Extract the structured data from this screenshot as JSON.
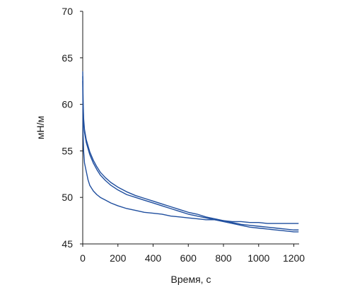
{
  "chart_data": {
    "type": "line",
    "title": "",
    "xlabel": "Время, с",
    "ylabel": "мН/м",
    "xlim": [
      0,
      1230
    ],
    "ylim": [
      45,
      70
    ],
    "xticks": [
      0,
      200,
      400,
      600,
      800,
      1000,
      1200
    ],
    "yticks": [
      45,
      50,
      55,
      60,
      65,
      70
    ],
    "grid": false,
    "legend": "none",
    "line_color": "#1f4e9e",
    "series": [
      {
        "x": [
          0,
          2,
          5,
          10,
          20,
          40,
          60,
          80,
          100,
          130,
          160,
          200,
          250,
          300,
          350,
          400,
          450,
          500,
          550,
          600,
          650,
          700,
          750,
          800,
          850,
          900,
          950,
          1000,
          1050,
          1100,
          1150,
          1200,
          1225
        ],
        "y": [
          63.5,
          60.5,
          58.5,
          57.3,
          56.2,
          54.9,
          54.0,
          53.3,
          52.7,
          52.1,
          51.6,
          51.1,
          50.6,
          50.2,
          49.9,
          49.6,
          49.3,
          49.0,
          48.7,
          48.4,
          48.2,
          47.9,
          47.7,
          47.5,
          47.3,
          47.1,
          47.0,
          46.9,
          46.8,
          46.7,
          46.6,
          46.5,
          46.5
        ]
      },
      {
        "x": [
          0,
          2,
          5,
          10,
          20,
          40,
          60,
          80,
          100,
          130,
          160,
          200,
          250,
          300,
          350,
          400,
          450,
          500,
          550,
          600,
          650,
          700,
          750,
          800,
          850,
          900,
          950,
          1000,
          1050,
          1100,
          1150,
          1200,
          1225
        ],
        "y": [
          63.0,
          60.0,
          58.0,
          57.0,
          55.9,
          54.6,
          53.7,
          53.0,
          52.4,
          51.8,
          51.3,
          50.8,
          50.3,
          50.0,
          49.7,
          49.4,
          49.1,
          48.8,
          48.5,
          48.2,
          48.0,
          47.8,
          47.6,
          47.4,
          47.2,
          47.0,
          46.8,
          46.7,
          46.6,
          46.5,
          46.4,
          46.3,
          46.3
        ]
      },
      {
        "x": [
          0,
          2,
          5,
          10,
          20,
          30,
          40,
          60,
          80,
          100,
          130,
          160,
          200,
          250,
          300,
          350,
          400,
          450,
          500,
          550,
          600,
          650,
          700,
          750,
          800,
          850,
          900,
          950,
          1000,
          1050,
          1100,
          1150,
          1200,
          1225
        ],
        "y": [
          62.5,
          57.0,
          55.0,
          53.7,
          52.8,
          51.9,
          51.3,
          50.7,
          50.3,
          50.0,
          49.7,
          49.4,
          49.1,
          48.8,
          48.6,
          48.4,
          48.3,
          48.2,
          48.0,
          47.9,
          47.8,
          47.7,
          47.6,
          47.6,
          47.5,
          47.4,
          47.4,
          47.3,
          47.3,
          47.2,
          47.2,
          47.2,
          47.2,
          47.2
        ]
      }
    ]
  }
}
